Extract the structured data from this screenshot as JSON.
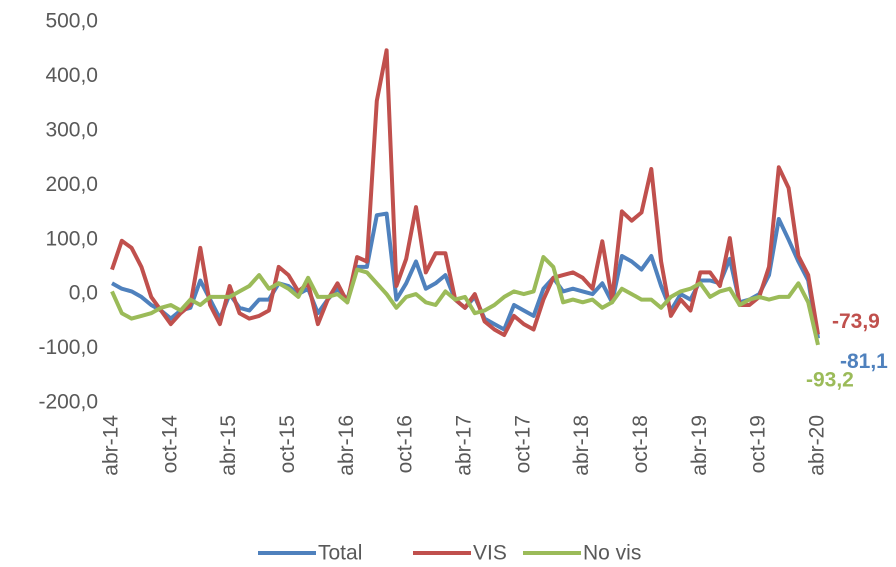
{
  "chart_data": {
    "type": "line",
    "categories": [
      "abr-14",
      null,
      null,
      null,
      null,
      null,
      "oct-14",
      null,
      null,
      null,
      null,
      null,
      "abr-15",
      null,
      null,
      null,
      null,
      null,
      "oct-15",
      null,
      null,
      null,
      null,
      null,
      "abr-16",
      null,
      null,
      null,
      null,
      null,
      "oct-16",
      null,
      null,
      null,
      null,
      null,
      "abr-17",
      null,
      null,
      null,
      null,
      null,
      "oct-17",
      null,
      null,
      null,
      null,
      null,
      "abr-18",
      null,
      null,
      null,
      null,
      null,
      "oct-18",
      null,
      null,
      null,
      null,
      null,
      "abr-19",
      null,
      null,
      null,
      null,
      null,
      "oct-19",
      null,
      null,
      null,
      null,
      null,
      "abr-20"
    ],
    "series": [
      {
        "name": "Total",
        "color": "#4f81bd",
        "values": [
          20,
          10,
          5,
          -5,
          -20,
          -30,
          -45,
          -30,
          -25,
          25,
          -10,
          -45,
          0,
          -25,
          -30,
          -10,
          -10,
          20,
          15,
          0,
          10,
          -35,
          -10,
          10,
          -10,
          50,
          50,
          145,
          148,
          -10,
          20,
          60,
          10,
          20,
          35,
          -10,
          -25,
          -5,
          -45,
          -55,
          -65,
          -20,
          -30,
          -40,
          10,
          30,
          5,
          10,
          5,
          0,
          20,
          -15,
          70,
          60,
          45,
          70,
          15,
          -30,
          0,
          -10,
          25,
          25,
          20,
          65,
          -15,
          -10,
          0,
          35,
          138,
          100,
          60,
          25,
          -81.1
        ],
        "value_labels": [
          null,
          null,
          null,
          null,
          null,
          null,
          null,
          null,
          null,
          null,
          null,
          null,
          null,
          null,
          null,
          null,
          null,
          null,
          null,
          null,
          null,
          null,
          null,
          null,
          null,
          null,
          null,
          null,
          null,
          null,
          null,
          null,
          null,
          null,
          null,
          null,
          null,
          null,
          null,
          null,
          null,
          null,
          null,
          null,
          null,
          null,
          null,
          null,
          null,
          null,
          null,
          null,
          null,
          null,
          null,
          null,
          null,
          null,
          null,
          null,
          null,
          null,
          null,
          null,
          null,
          null,
          null,
          null,
          null,
          null,
          null,
          null,
          "-81,1"
        ]
      },
      {
        "name": "VIS",
        "color": "#c0504d",
        "values": [
          45,
          98,
          85,
          50,
          -5,
          -30,
          -55,
          -35,
          -20,
          85,
          -20,
          -55,
          15,
          -35,
          -45,
          -40,
          -30,
          50,
          35,
          5,
          20,
          -55,
          -10,
          20,
          -15,
          68,
          60,
          355,
          448,
          15,
          65,
          160,
          40,
          75,
          75,
          -10,
          -25,
          0,
          -50,
          -65,
          -75,
          -40,
          -55,
          -65,
          -10,
          30,
          35,
          40,
          30,
          10,
          97,
          -10,
          152,
          135,
          150,
          230,
          60,
          -40,
          -10,
          -30,
          40,
          40,
          15,
          103,
          -20,
          -20,
          -5,
          50,
          233,
          195,
          70,
          35,
          -73.9
        ],
        "value_labels": [
          null,
          null,
          null,
          null,
          null,
          null,
          null,
          null,
          null,
          null,
          null,
          null,
          null,
          null,
          null,
          null,
          null,
          null,
          null,
          null,
          null,
          null,
          null,
          null,
          null,
          null,
          null,
          null,
          null,
          null,
          null,
          null,
          null,
          null,
          null,
          null,
          null,
          null,
          null,
          null,
          null,
          null,
          null,
          null,
          null,
          null,
          null,
          null,
          null,
          null,
          null,
          null,
          null,
          null,
          null,
          null,
          null,
          null,
          null,
          null,
          null,
          null,
          null,
          null,
          null,
          null,
          null,
          null,
          null,
          null,
          null,
          null,
          "-73,9"
        ]
      },
      {
        "name": "No vis",
        "color": "#9bbb59",
        "values": [
          5,
          -35,
          -45,
          -40,
          -35,
          -25,
          -20,
          -30,
          -10,
          -20,
          -5,
          -5,
          -5,
          5,
          15,
          35,
          10,
          20,
          10,
          -5,
          30,
          -5,
          -5,
          0,
          -15,
          45,
          40,
          20,
          0,
          -25,
          -5,
          0,
          -15,
          -20,
          5,
          -10,
          -5,
          -35,
          -30,
          -20,
          -5,
          5,
          0,
          5,
          68,
          50,
          -15,
          -10,
          -15,
          -10,
          -25,
          -15,
          10,
          0,
          -10,
          -10,
          -25,
          -5,
          5,
          10,
          20,
          -5,
          5,
          10,
          -20,
          -10,
          -5,
          -10,
          -5,
          -5,
          20,
          -15,
          -93.2
        ],
        "value_labels": [
          null,
          null,
          null,
          null,
          null,
          null,
          null,
          null,
          null,
          null,
          null,
          null,
          null,
          null,
          null,
          null,
          null,
          null,
          null,
          null,
          null,
          null,
          null,
          null,
          null,
          null,
          null,
          null,
          null,
          null,
          null,
          null,
          null,
          null,
          null,
          null,
          null,
          null,
          null,
          null,
          null,
          null,
          null,
          null,
          null,
          null,
          null,
          null,
          null,
          null,
          null,
          null,
          null,
          null,
          null,
          null,
          null,
          null,
          null,
          null,
          null,
          null,
          null,
          null,
          null,
          null,
          null,
          null,
          null,
          null,
          null,
          null,
          "-93,2"
        ]
      }
    ],
    "ylim": [
      -200,
      500
    ],
    "yticks": [
      {
        "value": -200,
        "label": "-200,0"
      },
      {
        "value": -100,
        "label": "-100,0"
      },
      {
        "value": 0,
        "label": "0,0"
      },
      {
        "value": 100,
        "label": "100,0"
      },
      {
        "value": 200,
        "label": "200,0"
      },
      {
        "value": 300,
        "label": "300,0"
      },
      {
        "value": 400,
        "label": "400,0"
      },
      {
        "value": 500,
        "label": "500,0"
      }
    ],
    "grid": false,
    "legend": "bottom"
  }
}
